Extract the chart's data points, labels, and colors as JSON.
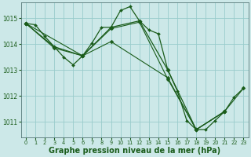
{
  "background_color": "#cce8e8",
  "grid_color": "#99cccc",
  "line_color": "#1a5c1a",
  "xlabel": "Graphe pression niveau de la mer (hPa)",
  "xlabel_fontsize": 7,
  "xlim": [
    -0.5,
    23.5
  ],
  "ylim": [
    1010.4,
    1015.6
  ],
  "yticks": [
    1011,
    1012,
    1013,
    1014,
    1015
  ],
  "xticks": [
    0,
    1,
    2,
    3,
    4,
    5,
    6,
    7,
    8,
    9,
    10,
    11,
    12,
    13,
    14,
    15,
    16,
    17,
    18,
    19,
    20,
    21,
    22,
    23
  ],
  "series": [
    {
      "x": [
        0,
        1,
        2,
        3,
        4,
        5,
        6,
        7,
        8,
        9,
        10,
        11,
        12,
        13,
        14,
        15,
        16,
        17,
        18,
        19,
        20,
        21,
        22,
        23
      ],
      "y": [
        1014.8,
        1014.75,
        1014.3,
        1013.9,
        1013.5,
        1013.2,
        1013.55,
        1014.05,
        1014.65,
        1014.65,
        1015.3,
        1015.45,
        1014.9,
        1014.55,
        1014.4,
        1013.0,
        1012.2,
        1011.05,
        1010.7,
        1010.7,
        1011.05,
        1011.4,
        1011.95,
        1012.3
      ],
      "linestyle": "-",
      "linewidth": 0.9,
      "markersize": 2.0
    },
    {
      "comment": "synoptic line 1 - connecting 0,3,6,9,12,15,18,21 with bigger markers",
      "x": [
        0,
        3,
        6,
        9,
        12,
        15,
        18,
        21
      ],
      "y": [
        1014.8,
        1013.9,
        1013.55,
        1014.65,
        1014.9,
        1013.0,
        1010.7,
        1011.4
      ],
      "linestyle": "-",
      "linewidth": 0.9,
      "markersize": 2.8
    },
    {
      "x": [
        0,
        3,
        6,
        9,
        12,
        15,
        18,
        21,
        23
      ],
      "y": [
        1014.8,
        1013.85,
        1013.55,
        1014.6,
        1014.85,
        1012.65,
        1010.7,
        1011.4,
        1012.3
      ],
      "linestyle": "-",
      "linewidth": 0.8,
      "markersize": 2.5
    },
    {
      "x": [
        0,
        6,
        9,
        15,
        18,
        21
      ],
      "y": [
        1014.8,
        1013.55,
        1014.1,
        1012.7,
        1010.7,
        1011.4
      ],
      "linestyle": "-",
      "linewidth": 0.8,
      "markersize": 2.5
    }
  ]
}
